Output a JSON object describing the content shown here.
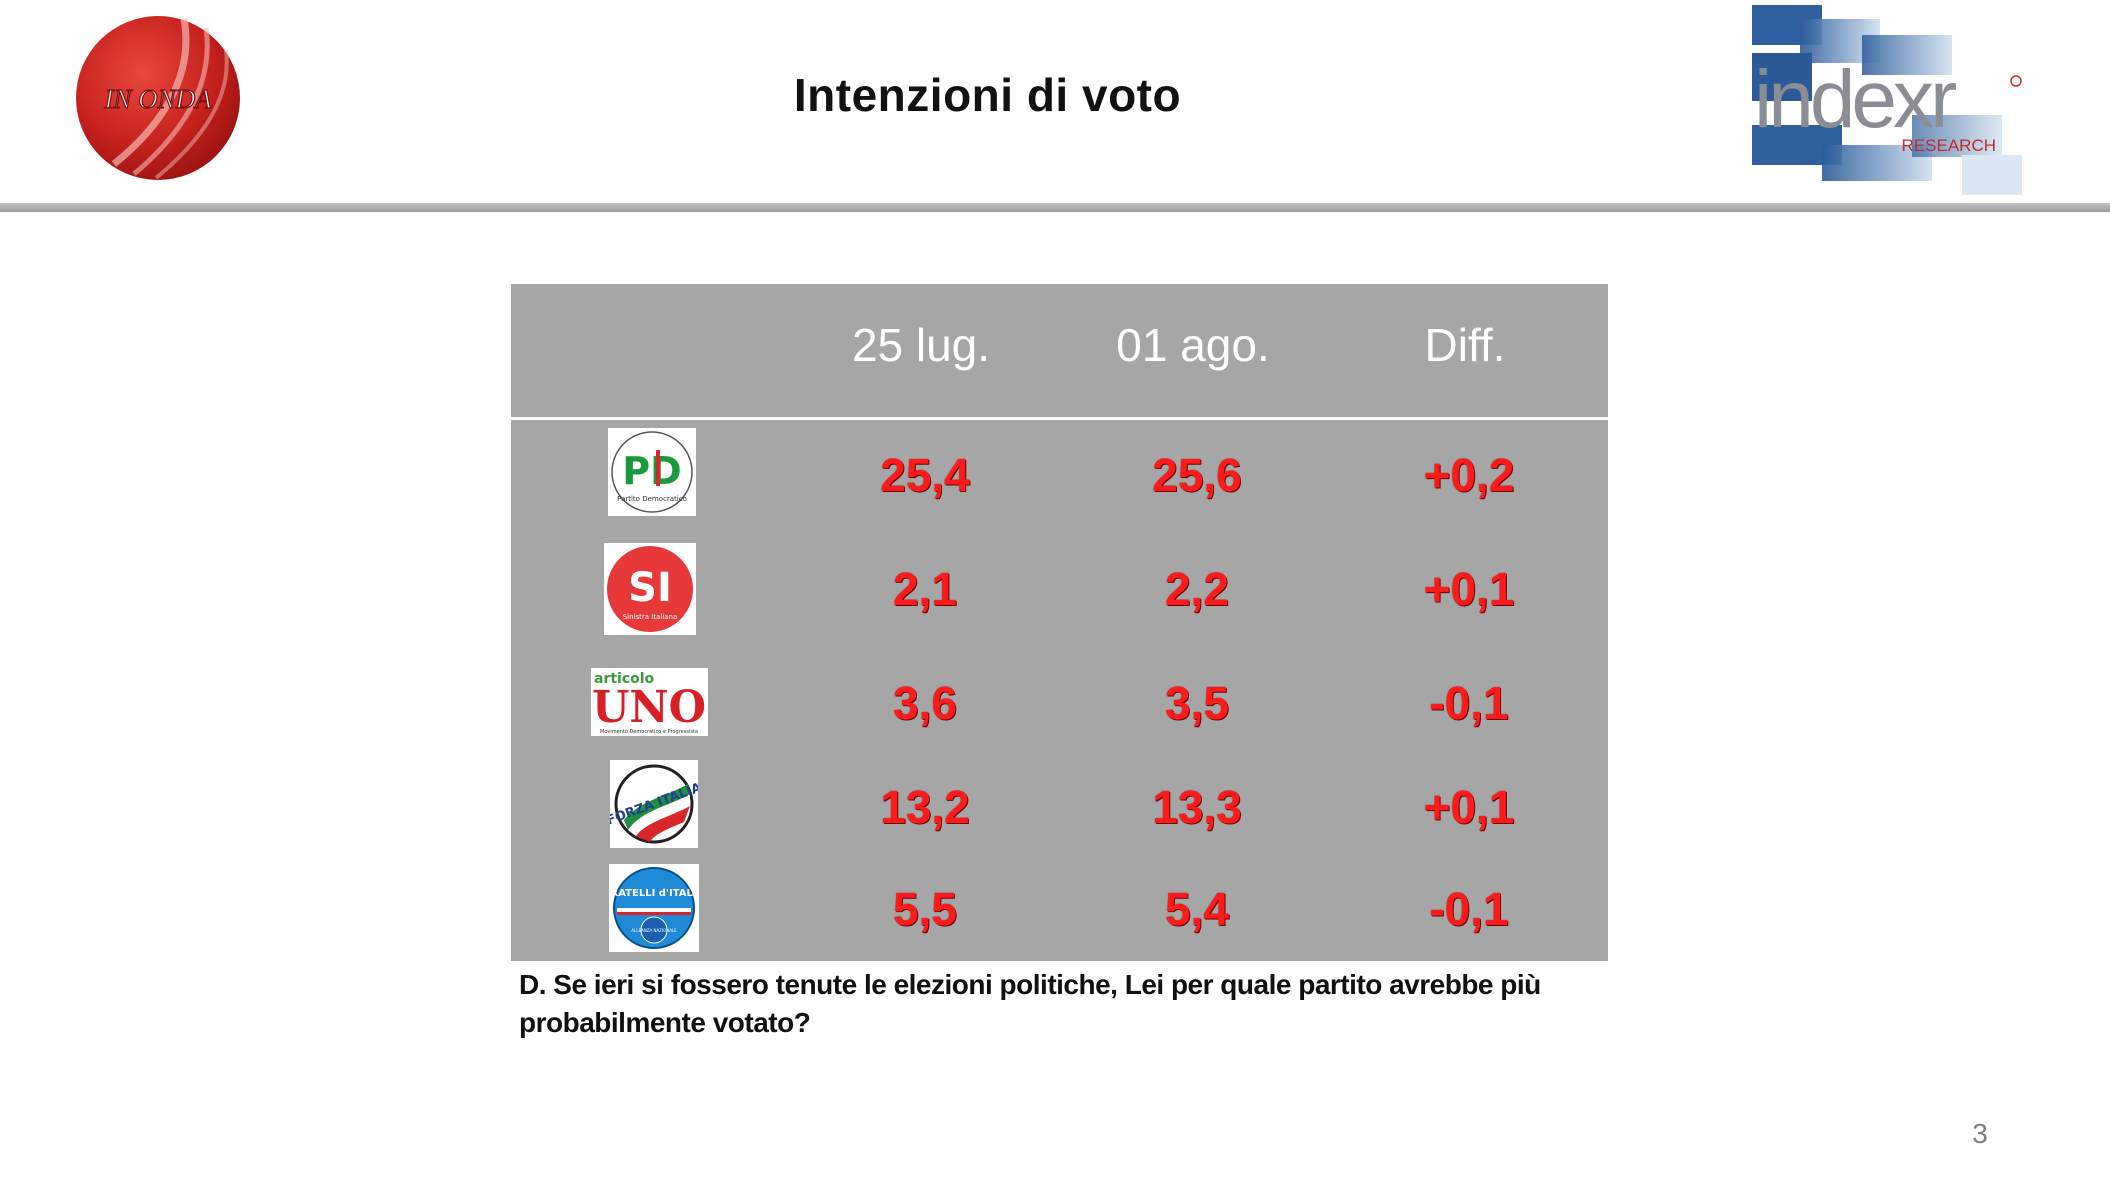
{
  "header": {
    "title": "Intenzioni di voto",
    "logo_left_text": "IN ONDA",
    "logo_right_text": "indexr",
    "logo_right_sub": "RESEARCH"
  },
  "table": {
    "columns": [
      "25 lug.",
      "01 ago.",
      "Diff."
    ],
    "rows": [
      {
        "party_logo_text": "PD",
        "party_logo_sub": "Partito Democratico",
        "values": [
          "25,4",
          "25,6",
          "+0,2"
        ]
      },
      {
        "party_logo_text": "SI",
        "party_logo_sub": "Sinistra Italiana",
        "values": [
          "2,1",
          "2,2",
          "+0,1"
        ]
      },
      {
        "party_logo_text": "UNO",
        "party_logo_top": "articolo",
        "party_logo_sub": "Movimento Democratico e Progressista",
        "values": [
          "3,6",
          "3,5",
          "-0,1"
        ]
      },
      {
        "party_logo_text": "FORZA ITALIA",
        "values": [
          "13,2",
          "13,3",
          "+0,1"
        ]
      },
      {
        "party_logo_text": "FRATELLI d'ITALIA",
        "party_logo_sub": "ALLEANZA NAZIONALE",
        "values": [
          "5,5",
          "5,4",
          "-0,1"
        ]
      }
    ]
  },
  "question": "D. Se ieri si fossero tenute le elezioni politiche, Lei per  quale partito avrebbe più probabilmente votato?",
  "page_number": "3",
  "colors": {
    "table_bg": "#a6a6a6",
    "value_red": "#ff1a1a",
    "header_text": "#ffffff"
  }
}
